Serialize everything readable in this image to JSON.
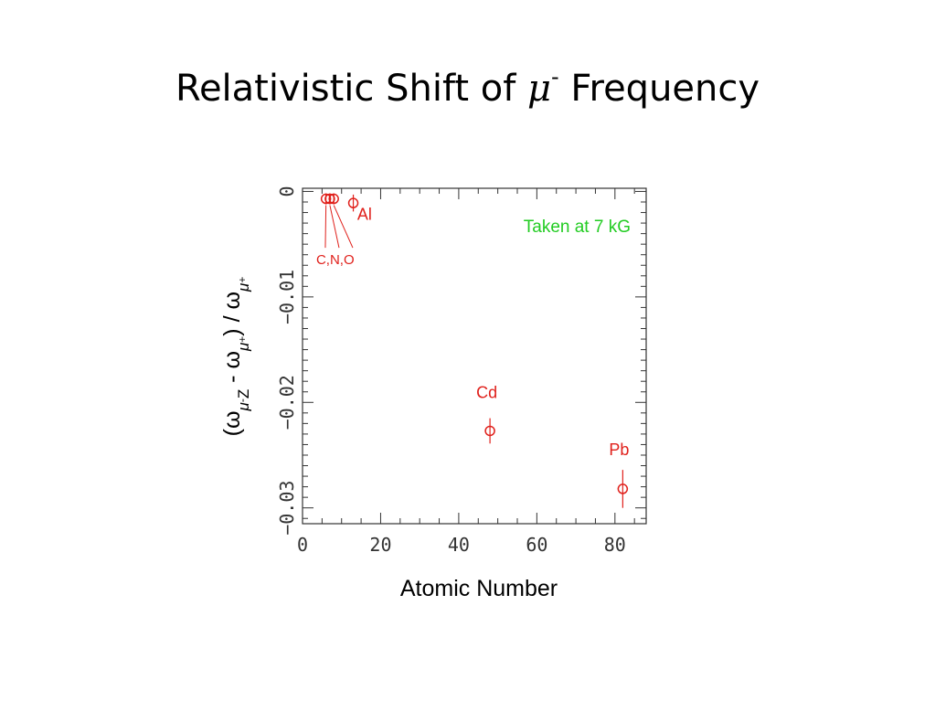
{
  "title": {
    "prefix": "Relativistic Shift of ",
    "symbol": "μ",
    "superscript": "-",
    "suffix": " Frequency"
  },
  "colors": {
    "data": "#e0201b",
    "note": "#22cc22",
    "axis": "#333333"
  },
  "chart_data": {
    "type": "scatter",
    "xlabel": "Atomic Number",
    "ylabel": "(ω_μ⁻Z - ω_μ⁺) / ω_μ⁺",
    "xlim": [
      0,
      88
    ],
    "ylim": [
      -0.0315,
      0.0003
    ],
    "xticks": [
      {
        "value": 0,
        "label": "0"
      },
      {
        "value": 20,
        "label": "20"
      },
      {
        "value": 40,
        "label": "40"
      },
      {
        "value": 60,
        "label": "60"
      },
      {
        "value": 80,
        "label": "80"
      }
    ],
    "yticks": [
      {
        "value": 0,
        "label": "0"
      },
      {
        "value": -0.01,
        "label": "−0.01"
      },
      {
        "value": -0.02,
        "label": "−0.02"
      },
      {
        "value": -0.03,
        "label": "−0.03"
      }
    ],
    "grid": false,
    "points": [
      {
        "element": "C",
        "z": 6,
        "y": -0.0007,
        "err": 0.0001
      },
      {
        "element": "N",
        "z": 7,
        "y": -0.0007,
        "err": 0.0001
      },
      {
        "element": "O",
        "z": 8,
        "y": -0.0007,
        "err": 0.0001
      },
      {
        "element": "Al",
        "z": 13,
        "y": -0.0011,
        "err": 0.0008
      },
      {
        "element": "Cd",
        "z": 48,
        "y": -0.0227,
        "err": 0.0012
      },
      {
        "element": "Pb",
        "z": 82,
        "y": -0.0282,
        "err": 0.0018
      }
    ],
    "annotations": [
      {
        "text": "Al",
        "x": 14,
        "y": -0.0027
      },
      {
        "text": "C,N,O",
        "x": 3.5,
        "y": -0.0069
      },
      {
        "text": "Cd",
        "x": 44.5,
        "y": -0.0196
      },
      {
        "text": "Pb",
        "x": 78.5,
        "y": -0.025
      }
    ],
    "note": "Taken at 7 kG"
  }
}
